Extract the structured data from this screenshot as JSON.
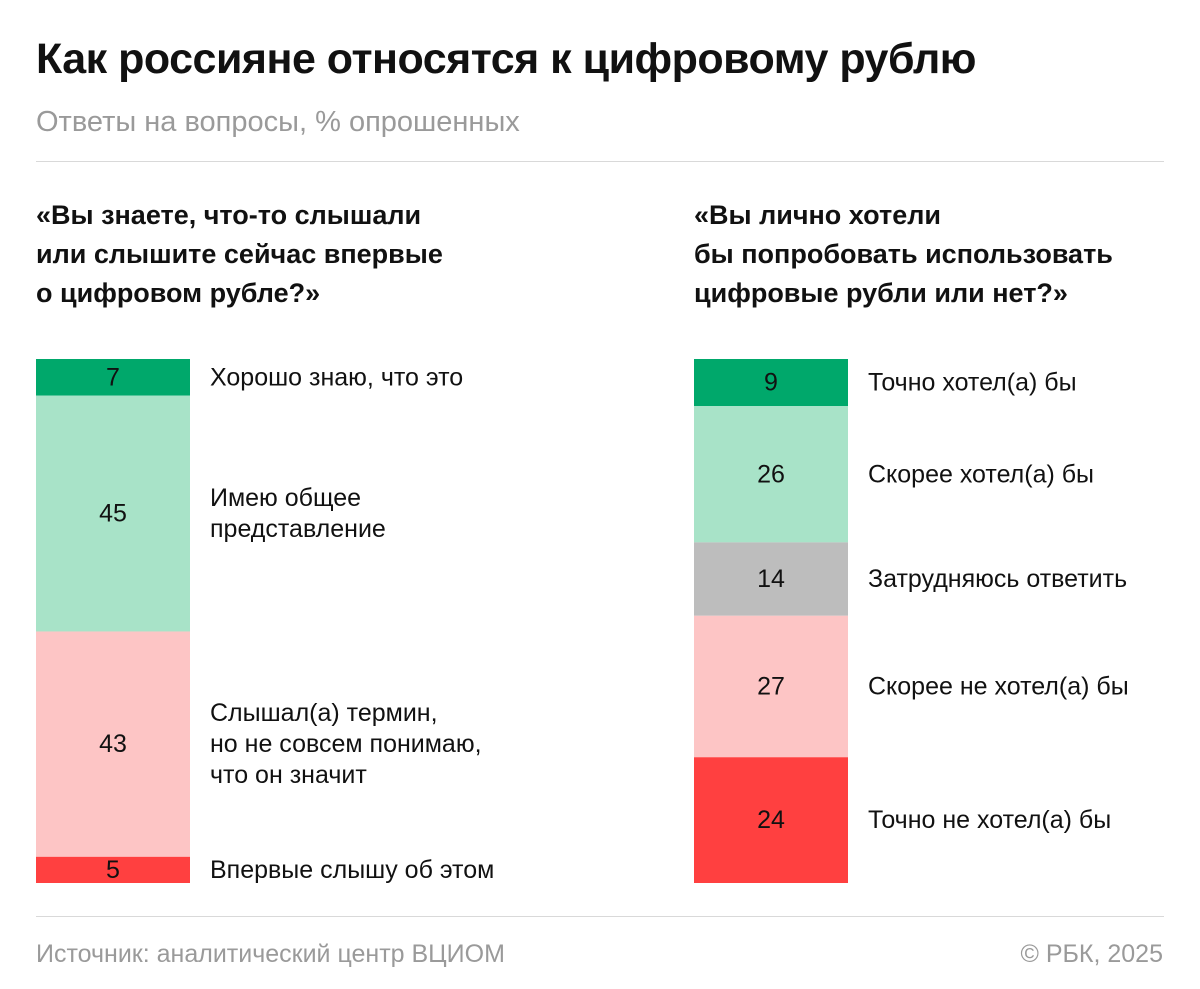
{
  "title": "Как россияне относятся к цифровому рублю",
  "subtitle": "Ответы на вопросы, % опрошенных",
  "colors": {
    "dark_green": "#00a86b",
    "light_green": "#a8e3c8",
    "gray": "#bdbdbd",
    "light_red": "#fdc5c5",
    "red": "#ff4040"
  },
  "chart_data": [
    {
      "type": "bar",
      "stacked": true,
      "orientation": "vertical",
      "question": "«Вы знаете, что-то слышали\nили слышите сейчас впервые\nо цифровом рубле?»",
      "categories": [
        "Хорошо знаю, что это",
        "Имею общее представление",
        "Слышал(а) термин, но не совсем понимаю, что он значит",
        "Впервые слышу об этом"
      ],
      "label_lines": [
        [
          "Хорошо знаю, что это"
        ],
        [
          "Имею общее",
          "представление"
        ],
        [
          "Слышал(а) термин,",
          "но не совсем понимаю,",
          "что он значит"
        ],
        [
          "Впервые слышу об этом"
        ]
      ],
      "values": [
        7,
        45,
        43,
        5
      ],
      "colors": [
        "#00a86b",
        "#a8e3c8",
        "#fdc5c5",
        "#ff4040"
      ]
    },
    {
      "type": "bar",
      "stacked": true,
      "orientation": "vertical",
      "question": "«Вы лично хотели\nбы попробовать использовать\nцифровые рубли или нет?»",
      "categories": [
        "Точно хотел(а) бы",
        "Скорее хотел(а) бы",
        "Затрудняюсь ответить",
        "Скорее не хотел(а) бы",
        "Точно не хотел(а) бы"
      ],
      "label_lines": [
        [
          "Точно хотел(а) бы"
        ],
        [
          "Скорее хотел(а) бы"
        ],
        [
          "Затрудняюсь ответить"
        ],
        [
          "Скорее не хотел(а) бы"
        ],
        [
          "Точно не хотел(а) бы"
        ]
      ],
      "values": [
        9,
        26,
        14,
        27,
        24
      ],
      "colors": [
        "#00a86b",
        "#a8e3c8",
        "#bdbdbd",
        "#fdc5c5",
        "#ff4040"
      ]
    }
  ],
  "footer": {
    "source": "Источник: аналитический центр ВЦИОМ",
    "copyright": "© РБК, 2025"
  }
}
